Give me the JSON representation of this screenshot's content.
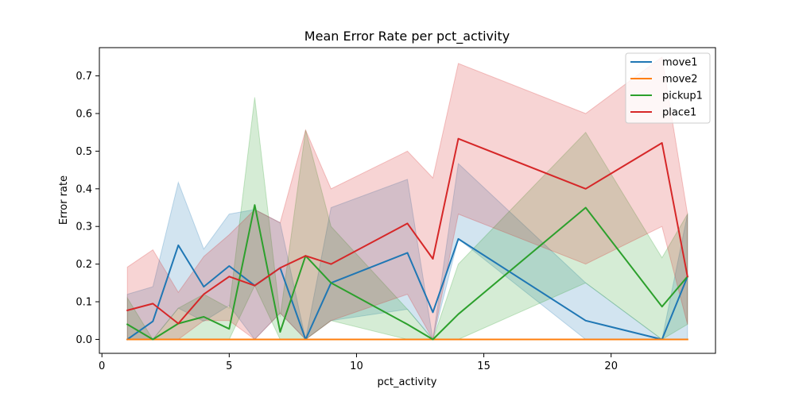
{
  "chart_data": {
    "type": "line",
    "title": "Mean Error Rate per pct_activity",
    "xlabel": "pct_activity",
    "ylabel": "Error rate",
    "xlim": [
      -0.1,
      24.1
    ],
    "ylim": [
      -0.037,
      0.775
    ],
    "x_ticks": [
      0,
      5,
      10,
      15,
      20
    ],
    "y_ticks": [
      0.0,
      0.1,
      0.2,
      0.3,
      0.4,
      0.5,
      0.6,
      0.7
    ],
    "grid": false,
    "legend_position": "top-right",
    "band_opacity": 0.2,
    "series": [
      {
        "name": "move1",
        "color": "#1f77b4",
        "x": [
          1,
          2,
          3,
          4,
          5,
          6,
          7,
          8,
          9,
          12,
          13,
          14,
          19,
          22,
          23
        ],
        "y": [
          0.0,
          0.048,
          0.25,
          0.14,
          0.195,
          0.143,
          0.19,
          0.0,
          0.15,
          0.23,
          0.072,
          0.267,
          0.05,
          0.0,
          0.167
        ],
        "lower": [
          0.0,
          0.0,
          0.083,
          0.048,
          0.09,
          0.0,
          0.07,
          0.0,
          0.05,
          0.08,
          0.0,
          0.267,
          0.0,
          0.0,
          0.0
        ],
        "upper": [
          0.12,
          0.14,
          0.417,
          0.24,
          0.333,
          0.345,
          0.31,
          0.0,
          0.35,
          0.425,
          0.0,
          0.467,
          0.15,
          0.0,
          0.333
        ]
      },
      {
        "name": "move2",
        "color": "#ff7f0e",
        "x": [
          1,
          2,
          3,
          4,
          5,
          6,
          7,
          8,
          9,
          12,
          13,
          14,
          19,
          22,
          23
        ],
        "y": [
          0,
          0,
          0,
          0,
          0,
          0,
          0,
          0,
          0,
          0,
          0,
          0,
          0,
          0,
          0
        ],
        "lower": [
          0,
          0,
          0,
          0,
          0,
          0,
          0,
          0,
          0,
          0,
          0,
          0,
          0,
          0,
          0
        ],
        "upper": [
          0,
          0,
          0,
          0,
          0,
          0,
          0,
          0,
          0,
          0,
          0,
          0,
          0,
          0,
          0
        ]
      },
      {
        "name": "pickup1",
        "color": "#2ca02c",
        "x": [
          1,
          2,
          3,
          4,
          5,
          6,
          7,
          8,
          9,
          12,
          13,
          14,
          19,
          22,
          23
        ],
        "y": [
          0.04,
          0.0,
          0.042,
          0.06,
          0.028,
          0.357,
          0.02,
          0.222,
          0.15,
          0.04,
          0.0,
          0.067,
          0.35,
          0.087,
          0.167
        ],
        "lower": [
          0.0,
          0.0,
          0.0,
          0.0,
          0.0,
          0.143,
          0.0,
          0.0,
          0.05,
          0.0,
          0.0,
          0.0,
          0.15,
          0.0,
          0.04
        ],
        "upper": [
          0.11,
          0.0,
          0.083,
          0.12,
          0.083,
          0.643,
          0.06,
          0.556,
          0.3,
          0.08,
          0.0,
          0.2,
          0.55,
          0.217,
          0.333
        ]
      },
      {
        "name": "place1",
        "color": "#d62728",
        "x": [
          1,
          2,
          3,
          4,
          5,
          6,
          7,
          8,
          9,
          12,
          13,
          14,
          19,
          22,
          23
        ],
        "y": [
          0.077,
          0.095,
          0.042,
          0.12,
          0.167,
          0.143,
          0.19,
          0.222,
          0.2,
          0.308,
          0.214,
          0.533,
          0.4,
          0.522,
          0.167
        ],
        "lower": [
          0.0,
          0.0,
          0.0,
          0.05,
          0.05,
          0.0,
          0.07,
          0.0,
          0.05,
          0.12,
          0.0,
          0.333,
          0.2,
          0.3,
          0.04
        ],
        "upper": [
          0.192,
          0.238,
          0.125,
          0.22,
          0.278,
          0.345,
          0.31,
          0.556,
          0.4,
          0.5,
          0.429,
          0.733,
          0.6,
          0.75,
          0.333
        ]
      }
    ]
  }
}
